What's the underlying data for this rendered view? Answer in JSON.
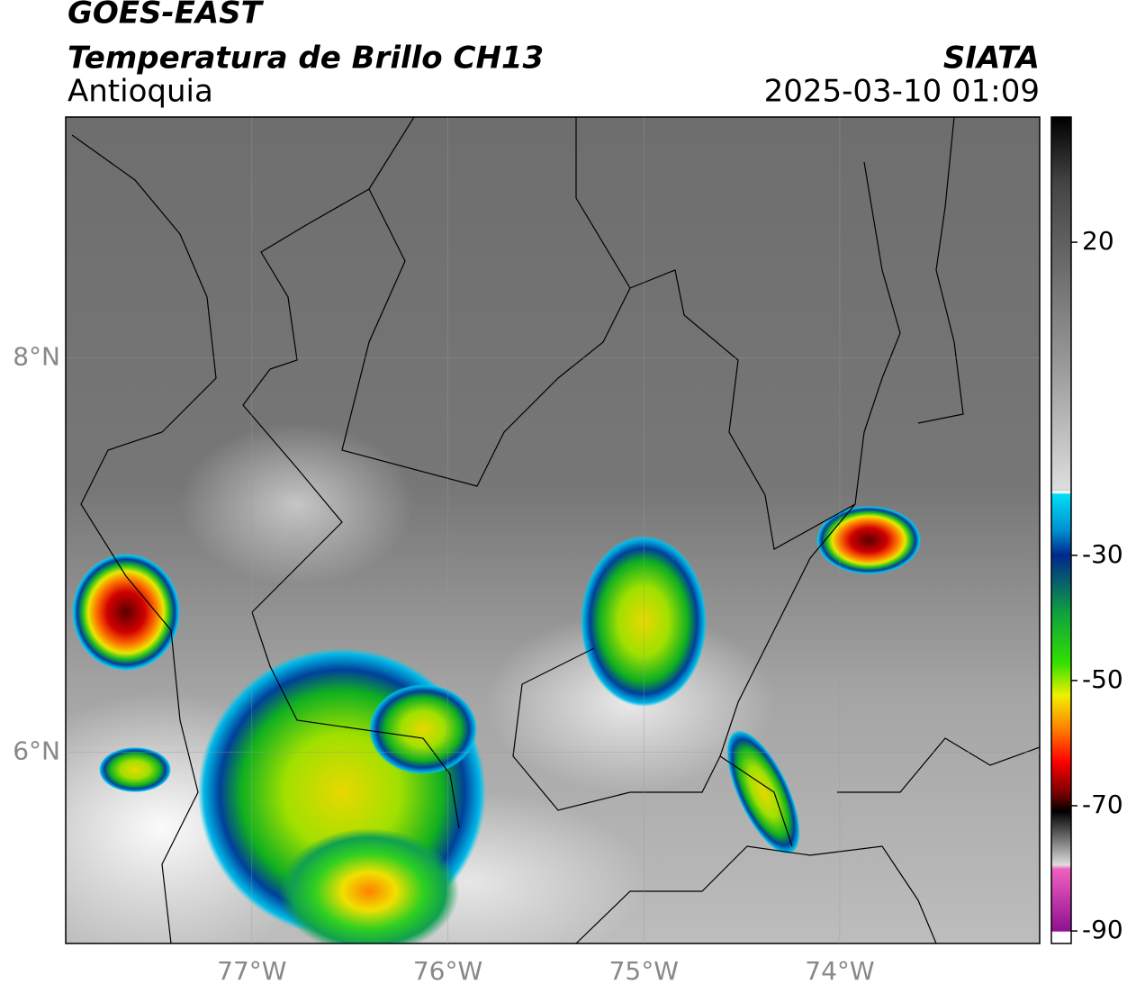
{
  "header": {
    "title": "GOES-EAST",
    "subtitle": "Temperatura de Brillo CH13",
    "region": "Antioquia",
    "source": "SIATA",
    "timestamp": "2025-03-10 01:09"
  },
  "map": {
    "xlim": [
      -77.95,
      -72.98
    ],
    "ylim": [
      5.03,
      9.22
    ],
    "lon_ticks": [
      {
        "value": -77,
        "label": "77°W"
      },
      {
        "value": -76,
        "label": "76°W"
      },
      {
        "value": -75,
        "label": "75°W"
      },
      {
        "value": -74,
        "label": "74°W"
      }
    ],
    "lat_ticks": [
      {
        "value": 8,
        "label": "8°N"
      },
      {
        "value": 6,
        "label": "6°N"
      }
    ]
  },
  "colorbar": {
    "lim": [
      -92,
      40
    ],
    "ticks": [
      20,
      -30,
      -50,
      -70,
      -90
    ]
  }
}
